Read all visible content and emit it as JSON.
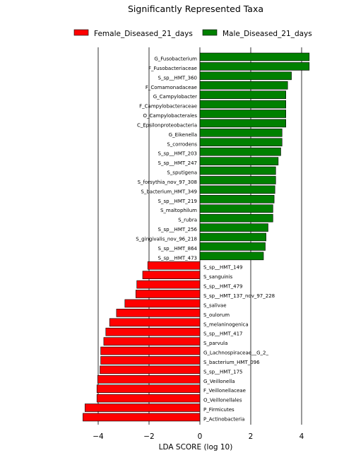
{
  "chart_data": {
    "type": "bar",
    "orientation": "horizontal",
    "title": "Significantly Represented Taxa",
    "xlabel": "LDA SCORE (log 10)",
    "ylabel": "",
    "xlim": [
      -4.6,
      4.8
    ],
    "xticks": [
      -4,
      -2,
      0,
      2,
      4
    ],
    "xtick_labels": [
      "−4",
      "−2",
      "0",
      "2",
      "4"
    ],
    "grid": "vertical lines at ticks",
    "legend_position": "top",
    "colors": {
      "Female_Diseased_21_days": "#ff0000",
      "Male_Diseased_21_days": "#008000"
    },
    "series": [
      {
        "name": "Female_Diseased_21_days",
        "color": "#ff0000"
      },
      {
        "name": "Male_Diseased_21_days",
        "color": "#008000"
      }
    ],
    "bars": [
      {
        "label": "G_Fusobacterium",
        "value": 4.3,
        "series": 1
      },
      {
        "label": "F_Fusobacteriaceae",
        "value": 4.3,
        "series": 1
      },
      {
        "label": "S_sp__HMT_360",
        "value": 3.6,
        "series": 1
      },
      {
        "label": "F_Comamonadaceae",
        "value": 3.45,
        "series": 1
      },
      {
        "label": "G_Campylobacter",
        "value": 3.38,
        "series": 1
      },
      {
        "label": "F_Campylobacteraceae",
        "value": 3.38,
        "series": 1
      },
      {
        "label": "O_Campylobacterales",
        "value": 3.38,
        "series": 1
      },
      {
        "label": "C_Epsilonproteobacteria",
        "value": 3.38,
        "series": 1
      },
      {
        "label": "G_Eikenella",
        "value": 3.23,
        "series": 1
      },
      {
        "label": "S_corrodens",
        "value": 3.23,
        "series": 1
      },
      {
        "label": "S_sp__HMT_203",
        "value": 3.18,
        "series": 1
      },
      {
        "label": "S_sp__HMT_247",
        "value": 3.08,
        "series": 1
      },
      {
        "label": "S_sputigena",
        "value": 2.98,
        "series": 1
      },
      {
        "label": "S_forsythia_nov_97_308",
        "value": 2.98,
        "series": 1
      },
      {
        "label": "S_bacterium_HMT_349",
        "value": 2.95,
        "series": 1
      },
      {
        "label": "S_sp__HMT_219",
        "value": 2.92,
        "series": 1
      },
      {
        "label": "S_maltophilum",
        "value": 2.87,
        "series": 1
      },
      {
        "label": "S_rubra",
        "value": 2.87,
        "series": 1
      },
      {
        "label": "S_sp__HMT_256",
        "value": 2.68,
        "series": 1
      },
      {
        "label": "S_gingivalis_nov_96_218",
        "value": 2.6,
        "series": 1
      },
      {
        "label": "S_sp__HMT_864",
        "value": 2.57,
        "series": 1
      },
      {
        "label": "S_sp__HMT_473",
        "value": 2.5,
        "series": 1
      },
      {
        "label": "S_sp__HMT_149",
        "value": -2.05,
        "series": 0
      },
      {
        "label": "S_sanguinis",
        "value": -2.25,
        "series": 0
      },
      {
        "label": "S_sp__HMT_479",
        "value": -2.48,
        "series": 0
      },
      {
        "label": "S_sp__HMT_137_nov_97_228",
        "value": -2.52,
        "series": 0
      },
      {
        "label": "S_salivae",
        "value": -2.95,
        "series": 0
      },
      {
        "label": "S_oulorum",
        "value": -3.28,
        "series": 0
      },
      {
        "label": "S_melaninogenica",
        "value": -3.55,
        "series": 0
      },
      {
        "label": "S_sp__HMT_417",
        "value": -3.7,
        "series": 0
      },
      {
        "label": "S_parvula",
        "value": -3.78,
        "series": 0
      },
      {
        "label": "G_Lachnospiraceae__G_2_",
        "value": -3.9,
        "series": 0
      },
      {
        "label": "S_bacterium_HMT_096",
        "value": -3.9,
        "series": 0
      },
      {
        "label": "S_sp__HMT_175",
        "value": -3.93,
        "series": 0
      },
      {
        "label": "G_Veillonella",
        "value": -4.02,
        "series": 0
      },
      {
        "label": "F_Veillonellaceae",
        "value": -4.05,
        "series": 0
      },
      {
        "label": "O_Veillonellales",
        "value": -4.05,
        "series": 0
      },
      {
        "label": "P_Firmicutes",
        "value": -4.52,
        "series": 0
      },
      {
        "label": "P_Actinobacteria",
        "value": -4.6,
        "series": 0
      }
    ]
  }
}
